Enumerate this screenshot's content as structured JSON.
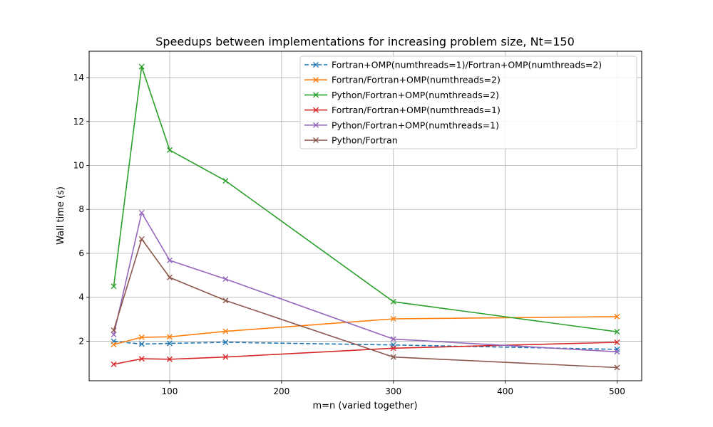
{
  "chart_data": {
    "type": "line",
    "title": "Speedups between implementations for increasing problem size, Nt=150",
    "xlabel": "m=n (varied together)",
    "ylabel": "Wall time (s)",
    "xlim": [
      28,
      522
    ],
    "ylim": [
      0.2,
      15.2
    ],
    "xticks": [
      100,
      200,
      300,
      400,
      500
    ],
    "yticks": [
      2,
      4,
      6,
      8,
      10,
      12,
      14
    ],
    "grid": true,
    "legend_position": "top-right",
    "x": [
      50,
      75,
      100,
      150,
      300,
      500
    ],
    "series": [
      {
        "name": "Fortran+OMP(numthreads=1)/Fortran+OMP(numthreads=2)",
        "color": "#1f77b4",
        "dashed": true,
        "values": [
          2.0,
          1.87,
          1.9,
          1.95,
          1.83,
          1.63
        ]
      },
      {
        "name": "Fortran/Fortran+OMP(numthreads=2)",
        "color": "#ff7f0e",
        "dashed": false,
        "values": [
          1.85,
          2.18,
          2.2,
          2.45,
          3.02,
          3.12
        ]
      },
      {
        "name": "Python/Fortran+OMP(numthreads=2)",
        "color": "#2ca02c",
        "dashed": false,
        "values": [
          4.5,
          14.5,
          10.7,
          9.3,
          3.8,
          2.43
        ]
      },
      {
        "name": "Fortran/Fortran+OMP(numthreads=1)",
        "color": "#d62728",
        "dashed": false,
        "values": [
          0.95,
          1.2,
          1.18,
          1.28,
          1.68,
          1.95
        ]
      },
      {
        "name": "Python/Fortran+OMP(numthreads=1)",
        "color": "#9467bd",
        "dashed": false,
        "values": [
          2.3,
          7.85,
          5.68,
          4.83,
          2.1,
          1.52
        ]
      },
      {
        "name": "Python/Fortran",
        "color": "#8c564b",
        "dashed": false,
        "values": [
          2.5,
          6.65,
          4.9,
          3.85,
          1.28,
          0.8
        ]
      }
    ]
  }
}
